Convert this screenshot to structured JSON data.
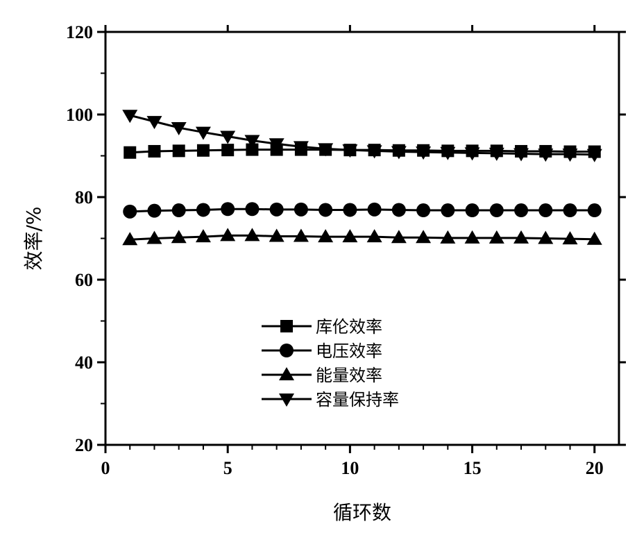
{
  "chart_data": {
    "type": "line",
    "title": "",
    "xlabel": "循环数",
    "ylabel": "效率/%",
    "xlim": [
      0,
      21
    ],
    "ylim": [
      20,
      120
    ],
    "xticks": [
      0,
      5,
      10,
      15,
      20
    ],
    "yticks": [
      20,
      40,
      60,
      80,
      100,
      120
    ],
    "grid": false,
    "legend_position": "center-left",
    "x": [
      1,
      2,
      3,
      4,
      5,
      6,
      7,
      8,
      9,
      10,
      11,
      12,
      13,
      14,
      15,
      16,
      17,
      18,
      19,
      20
    ],
    "series": [
      {
        "name": "库伦效率",
        "marker": "square",
        "values": [
          90.8,
          91.1,
          91.2,
          91.3,
          91.4,
          91.5,
          91.5,
          91.5,
          91.5,
          91.4,
          91.4,
          91.3,
          91.3,
          91.2,
          91.2,
          91.2,
          91.1,
          91.1,
          91.0,
          91.0
        ]
      },
      {
        "name": "电压效率",
        "marker": "circle",
        "values": [
          76.5,
          76.7,
          76.8,
          76.9,
          77.1,
          77.1,
          77.0,
          77.0,
          76.9,
          76.9,
          77.0,
          76.9,
          76.8,
          76.8,
          76.8,
          76.8,
          76.8,
          76.8,
          76.8,
          76.8
        ]
      },
      {
        "name": "能量效率",
        "marker": "triangle-up",
        "values": [
          69.7,
          70.0,
          70.2,
          70.4,
          70.7,
          70.7,
          70.5,
          70.5,
          70.4,
          70.4,
          70.4,
          70.2,
          70.2,
          70.1,
          70.1,
          70.1,
          70.1,
          70.0,
          69.9,
          69.8
        ]
      },
      {
        "name": "容量保持率",
        "marker": "triangle-down",
        "values": [
          99.8,
          98.3,
          96.8,
          95.7,
          94.7,
          93.7,
          92.9,
          92.2,
          91.7,
          91.4,
          91.2,
          91.0,
          90.9,
          90.8,
          90.7,
          90.6,
          90.5,
          90.4,
          90.4,
          90.3
        ]
      }
    ]
  }
}
